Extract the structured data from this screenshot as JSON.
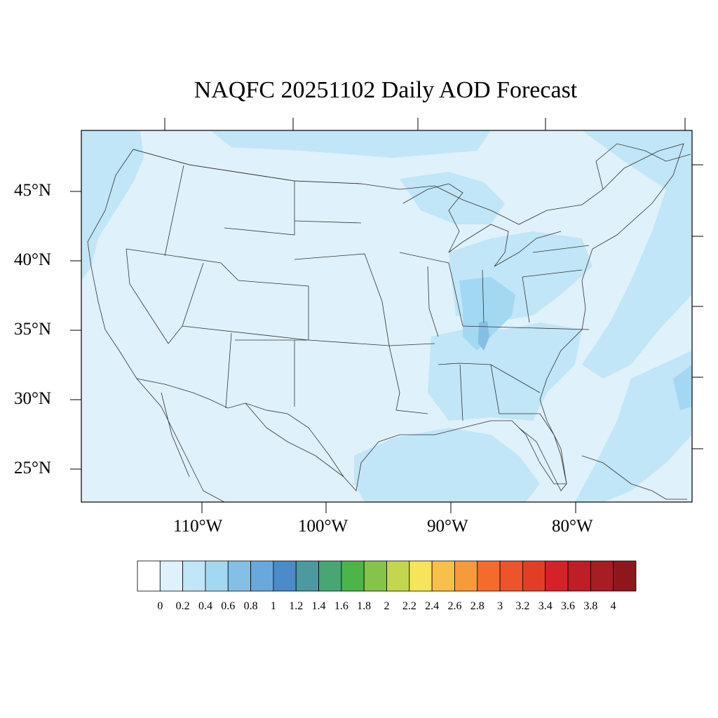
{
  "title": "NAQFC 20251102 Daily AOD Forecast",
  "lat_labels": [
    "45°N",
    "40°N",
    "35°N",
    "30°N",
    "25°N"
  ],
  "lon_labels": [
    "110°W",
    "100°W",
    "90°W",
    "80°W"
  ],
  "colorbar": {
    "tick_labels": [
      "0",
      "0.2",
      "0.4",
      "0.6",
      "0.8",
      "1",
      "1.2",
      "1.4",
      "1.6",
      "1.8",
      "2",
      "2.2",
      "2.4",
      "2.6",
      "2.8",
      "3",
      "3.2",
      "3.4",
      "3.6",
      "3.8",
      "4"
    ],
    "colors": [
      "#ffffff",
      "#dff1fa",
      "#c0e6f7",
      "#a2d8f2",
      "#84bfe6",
      "#69a8dc",
      "#4a8bc8",
      "#4a9aa0",
      "#47a772",
      "#4cb548",
      "#86c34a",
      "#c4d64e",
      "#f6e55a",
      "#f7c04a",
      "#f69a3c",
      "#f36c2e",
      "#ec542a",
      "#e23d27",
      "#d52227",
      "#be1e26",
      "#a81c23",
      "#8e171c"
    ]
  },
  "colors": {
    "ocean": "#dff1fa",
    "land": "#dff1fa",
    "aod_02_04": "#c0e6f7",
    "aod_04_06": "#a2d8f2",
    "aod_06_08": "#84bfe6"
  }
}
